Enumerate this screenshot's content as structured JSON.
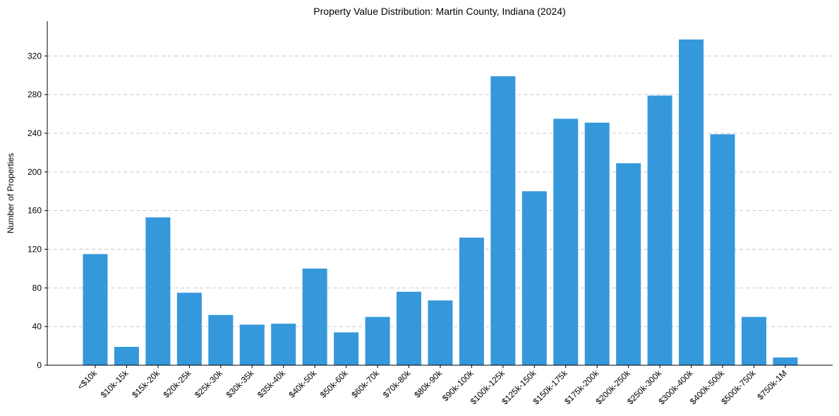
{
  "chart_data": {
    "type": "bar",
    "title": "Property Value Distribution: Martin County, Indiana (2024)",
    "xlabel": "",
    "ylabel": "Number of Properties",
    "ylim": [
      0,
      356
    ],
    "yticks": [
      0,
      40,
      80,
      120,
      160,
      200,
      240,
      280,
      320
    ],
    "grid": "y",
    "bar_color": "#3498db",
    "categories": [
      "<$10k",
      "$10k-15k",
      "$15k-20k",
      "$20k-25k",
      "$25k-30k",
      "$30k-35k",
      "$35k-40k",
      "$40k-50k",
      "$50k-60k",
      "$60k-70k",
      "$70k-80k",
      "$80k-90k",
      "$90k-100k",
      "$100k-125k",
      "$125k-150k",
      "$150k-175k",
      "$175k-200k",
      "$200k-250k",
      "$250k-300k",
      "$300k-400k",
      "$400k-500k",
      "$500k-750k",
      "$750k-1M"
    ],
    "values": [
      115,
      19,
      153,
      75,
      52,
      42,
      43,
      100,
      34,
      50,
      76,
      67,
      132,
      299,
      180,
      255,
      251,
      209,
      279,
      337,
      239,
      50,
      8
    ]
  }
}
